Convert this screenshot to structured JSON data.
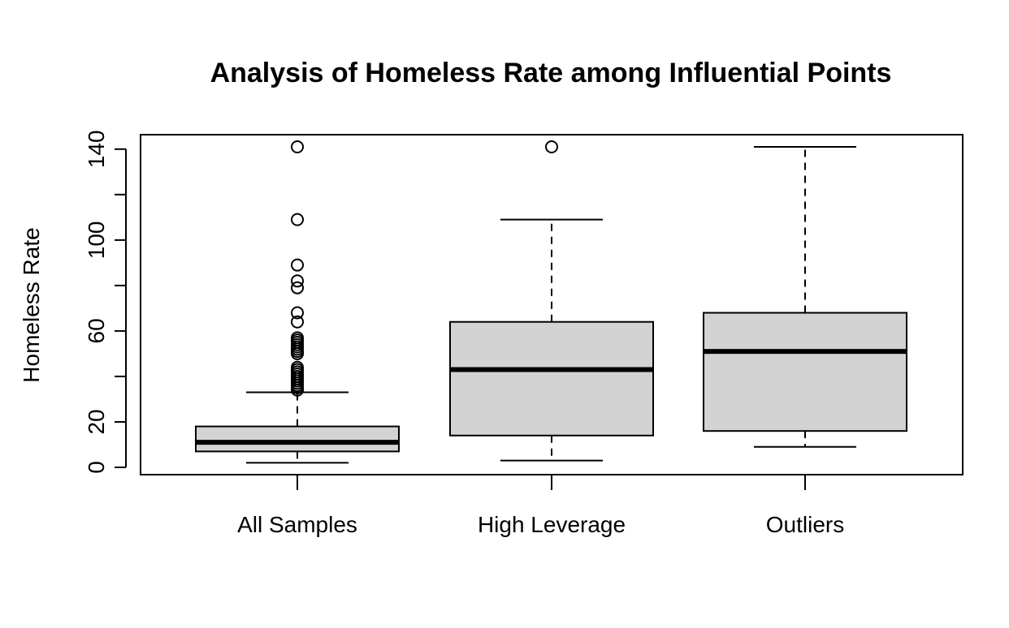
{
  "chart_data": {
    "type": "boxplot",
    "title": "Analysis of Homeless Rate among Influential Points",
    "xlabel": "",
    "ylabel": "Homeless Rate",
    "ylim": [
      -3,
      148
    ],
    "yticks": [
      0,
      20,
      60,
      100,
      140
    ],
    "yminor_ticks": [
      40,
      80,
      120
    ],
    "grid": false,
    "colors": {
      "box_fill": "#d3d3d3",
      "stroke": "#000000"
    },
    "categories": [
      "All Samples",
      "High Leverage",
      "Outliers"
    ],
    "boxes": [
      {
        "category": "All Samples",
        "whisker_low": 2,
        "q1": 7,
        "median": 11,
        "q3": 18,
        "whisker_high": 33,
        "outliers": [
          141,
          109,
          89,
          82,
          79,
          68,
          64,
          57,
          56,
          55,
          54,
          53,
          52,
          51,
          50,
          44,
          43,
          42,
          41,
          40,
          39,
          38,
          37,
          36,
          35,
          34
        ]
      },
      {
        "category": "High Leverage",
        "whisker_low": 3,
        "q1": 14,
        "median": 43,
        "q3": 64,
        "whisker_high": 109,
        "outliers": [
          141
        ]
      },
      {
        "category": "Outliers",
        "whisker_low": 9,
        "q1": 16,
        "median": 51,
        "q3": 68,
        "whisker_high": 141,
        "outliers": []
      }
    ]
  }
}
